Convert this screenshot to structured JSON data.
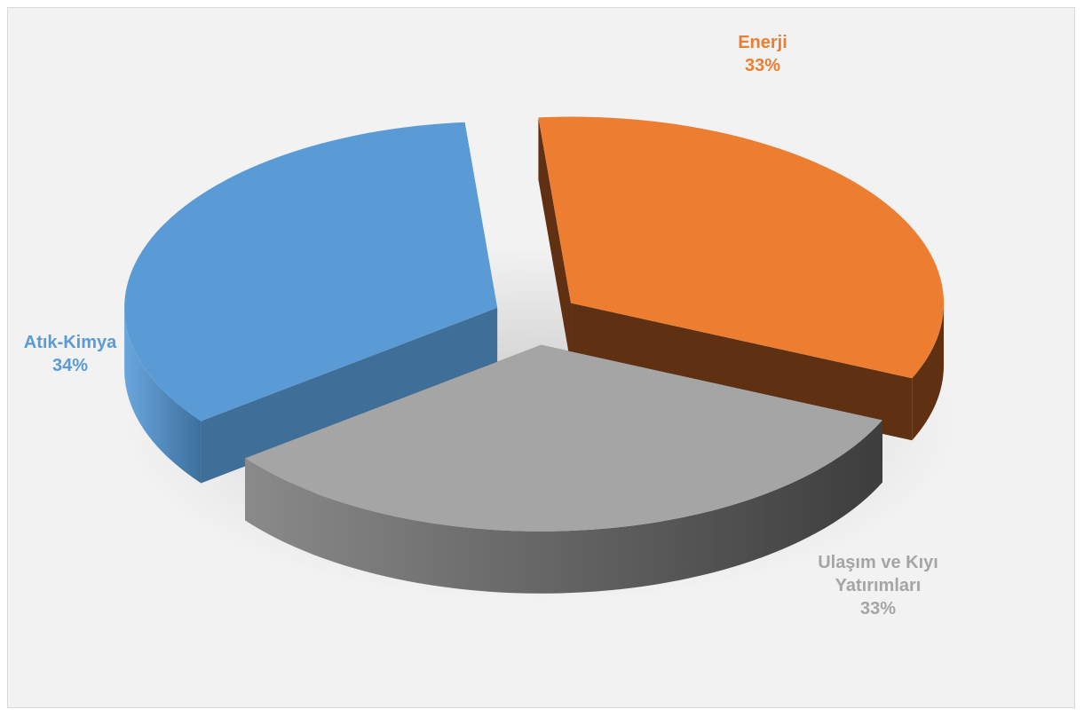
{
  "chart_data": {
    "type": "pie",
    "style": "3d-exploded",
    "slices": [
      {
        "name": "Enerji",
        "value": 33,
        "label_value": "33%",
        "color": "#ED7D31",
        "side_color": "#5F3011"
      },
      {
        "name": "Ulaşım ve Kıyı Yatırımları",
        "label_lines": [
          "Ulaşım ve Kıyı",
          "Yatırımları"
        ],
        "value": 33,
        "label_value": "33%",
        "color": "#A5A5A5",
        "side_color": "#4A4A4A"
      },
      {
        "name": "Atık-Kimya",
        "value": 34,
        "label_value": "34%",
        "color": "#5B9BD5",
        "side_color": "#3F6E98"
      }
    ]
  }
}
